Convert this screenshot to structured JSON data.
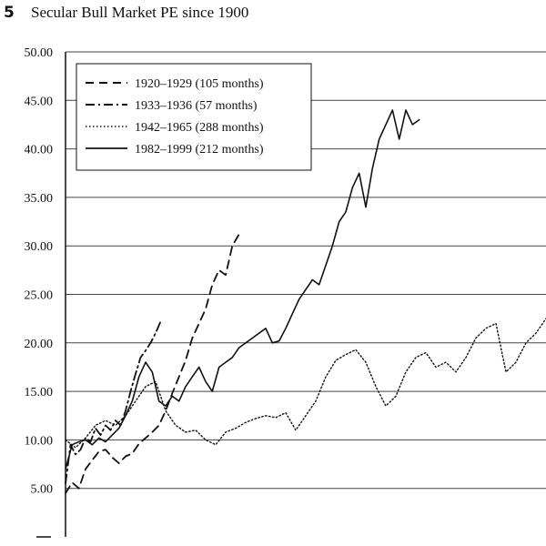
{
  "figure_number": "5",
  "chart_data": {
    "type": "line",
    "title": "Secular Bull Market PE since 1900",
    "xlabel": "",
    "ylabel": "",
    "ylim": [
      0,
      50
    ],
    "xlim": [
      0,
      288
    ],
    "y_ticks": [
      "5.00",
      "10.00",
      "15.00",
      "20.00",
      "25.00",
      "30.00",
      "35.00",
      "40.00",
      "45.00",
      "50.00"
    ],
    "grid": "horizontal",
    "legend_position": "top-left",
    "series": [
      {
        "name": "1920–1929 (105 months)",
        "dash": "dashed",
        "x": [
          0,
          4,
          8,
          12,
          16,
          20,
          24,
          28,
          32,
          36,
          40,
          44,
          48,
          52,
          56,
          60,
          64,
          68,
          72,
          76,
          80,
          84,
          88,
          92,
          96,
          100,
          105
        ],
        "y": [
          4.5,
          5.6,
          5.0,
          7.0,
          7.9,
          8.8,
          9.0,
          8.2,
          7.6,
          8.3,
          8.6,
          9.6,
          10.2,
          10.8,
          11.5,
          13.0,
          14.8,
          16.5,
          18.2,
          20.5,
          22.0,
          23.5,
          26.0,
          27.5,
          27.0,
          30.0,
          31.5
        ]
      },
      {
        "name": "1933–1936 (57 months)",
        "dash": "dash-dot",
        "x": [
          0,
          3,
          6,
          9,
          12,
          15,
          18,
          21,
          24,
          27,
          30,
          33,
          36,
          39,
          42,
          45,
          48,
          51,
          54,
          57
        ],
        "y": [
          5.5,
          9.5,
          8.5,
          9.0,
          10.2,
          9.8,
          11.2,
          10.5,
          11.5,
          11.0,
          12.0,
          11.5,
          13.0,
          15.0,
          16.8,
          18.5,
          19.2,
          20.0,
          21.0,
          22.2
        ]
      },
      {
        "name": "1942–1965 (288 months)",
        "dash": "dotted",
        "x": [
          0,
          6,
          12,
          18,
          24,
          30,
          36,
          42,
          48,
          54,
          60,
          66,
          72,
          78,
          84,
          90,
          96,
          102,
          108,
          114,
          120,
          126,
          132,
          138,
          144,
          150,
          156,
          162,
          168,
          174,
          180,
          186,
          192,
          198,
          204,
          210,
          216,
          222,
          228,
          234,
          240,
          246,
          252,
          258,
          264,
          270,
          276,
          282,
          288
        ],
        "y": [
          10.0,
          9.2,
          10.2,
          11.5,
          12.0,
          11.5,
          12.5,
          14.0,
          15.5,
          16.0,
          13.0,
          11.5,
          10.8,
          11.0,
          10.0,
          9.5,
          10.8,
          11.2,
          11.8,
          12.2,
          12.5,
          12.3,
          12.8,
          11.0,
          12.5,
          14.0,
          16.5,
          18.2,
          18.8,
          19.3,
          18.0,
          15.5,
          13.5,
          14.5,
          17.0,
          18.5,
          19.0,
          17.5,
          18.0,
          17.0,
          18.5,
          20.5,
          21.5,
          22.0,
          17.0,
          18.0,
          20.0,
          21.0,
          22.5
        ]
      },
      {
        "name": "1982–1999 (212 months)",
        "dash": "solid",
        "x": [
          0,
          4,
          8,
          12,
          16,
          20,
          24,
          28,
          32,
          36,
          40,
          44,
          48,
          52,
          56,
          60,
          64,
          68,
          72,
          76,
          80,
          84,
          88,
          92,
          96,
          100,
          104,
          108,
          112,
          116,
          120,
          124,
          128,
          132,
          136,
          140,
          144,
          148,
          152,
          156,
          160,
          164,
          168,
          172,
          176,
          180,
          184,
          188,
          192,
          196,
          200,
          204,
          208,
          212
        ],
        "y": [
          7.0,
          9.5,
          9.8,
          10.0,
          9.5,
          10.2,
          9.8,
          10.5,
          11.2,
          12.5,
          14.0,
          16.5,
          18.0,
          17.0,
          14.0,
          13.5,
          14.5,
          14.0,
          15.5,
          16.5,
          17.5,
          16.0,
          15.0,
          17.5,
          18.0,
          18.5,
          19.5,
          20.0,
          20.5,
          21.0,
          21.5,
          20.0,
          20.2,
          21.5,
          23.0,
          24.5,
          25.5,
          26.5,
          26.0,
          28.0,
          30.0,
          32.5,
          33.5,
          36.0,
          37.5,
          34.0,
          38.0,
          41.0,
          42.5,
          44.0,
          41.0,
          44.0,
          42.5,
          43.0
        ]
      }
    ]
  }
}
